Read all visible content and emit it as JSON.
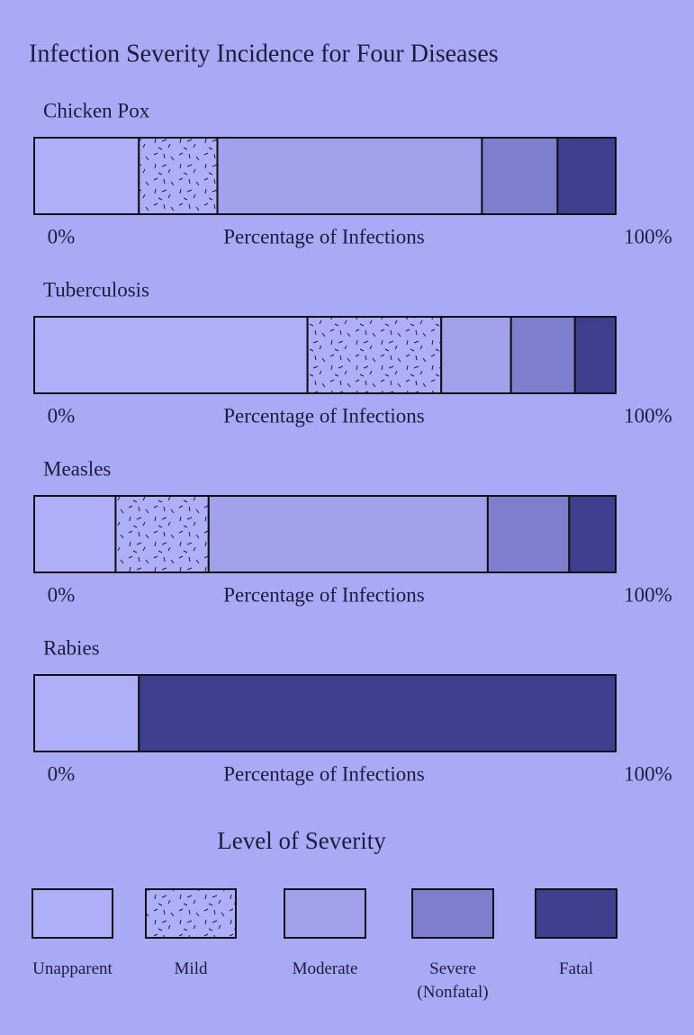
{
  "chart_data": {
    "type": "stacked-bar",
    "title": "Infection Severity Incidence for Four Diseases",
    "categories": [
      "Chicken Pox",
      "Tuberculosis",
      "Measles",
      "Rabies"
    ],
    "xlabel": "Percentage of Infections",
    "xlim": [
      0,
      100
    ],
    "xticks": [
      {
        "value": 0,
        "label": "0%"
      },
      {
        "value": 100,
        "label": "100%"
      }
    ],
    "legend_title": "Level of Severity",
    "series": [
      {
        "name": "Unapparent",
        "color": "#aeaff8",
        "values": [
          18,
          47,
          14,
          18
        ]
      },
      {
        "name": "Mild",
        "color": "#aeaff8",
        "pattern": "dashes",
        "values": [
          13.5,
          23,
          16,
          0
        ]
      },
      {
        "name": "Moderate",
        "color": "#a0a1ea",
        "values": [
          45.5,
          12,
          48,
          0
        ]
      },
      {
        "name": "Severe (Nonfatal)",
        "color": "#7d7ece",
        "values": [
          13,
          11,
          14,
          0
        ]
      },
      {
        "name": "Fatal",
        "color": "#3e3f8e",
        "values": [
          10,
          7,
          8,
          82
        ]
      }
    ]
  }
}
